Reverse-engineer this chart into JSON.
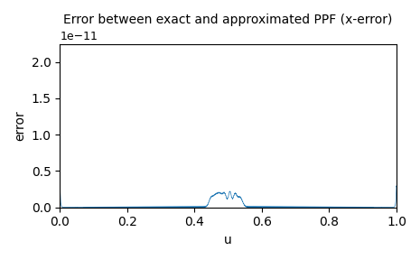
{
  "title": "Error between exact and approximated PPF (x-error)",
  "xlabel": "u",
  "ylabel": "error",
  "line_color": "#1f77b4",
  "ylim": [
    0,
    2.25e-11
  ],
  "xlim": [
    0.0,
    1.0
  ],
  "n_points": 10000,
  "scale": 1e-11
}
